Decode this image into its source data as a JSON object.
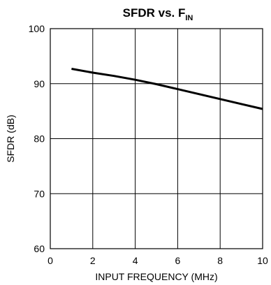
{
  "chart_data": {
    "type": "line",
    "title": "SFDR vs. F",
    "title_subscript": "IN",
    "xlabel": "INPUT FREQUENCY (MHz)",
    "ylabel": "SFDR (dB)",
    "xlim": [
      0,
      10
    ],
    "ylim": [
      60,
      100
    ],
    "x_ticks": [
      "0",
      "2",
      "4",
      "6",
      "8",
      "10"
    ],
    "y_ticks": [
      "60",
      "70",
      "80",
      "90",
      "100"
    ],
    "grid": true,
    "series": [
      {
        "x": [
          1,
          2,
          3,
          4,
          5,
          6,
          7,
          8,
          9,
          10
        ],
        "values": [
          92.7,
          92.0,
          91.4,
          90.7,
          89.9,
          89.0,
          88.1,
          87.2,
          86.3,
          85.4
        ],
        "color": "#000000"
      }
    ]
  }
}
